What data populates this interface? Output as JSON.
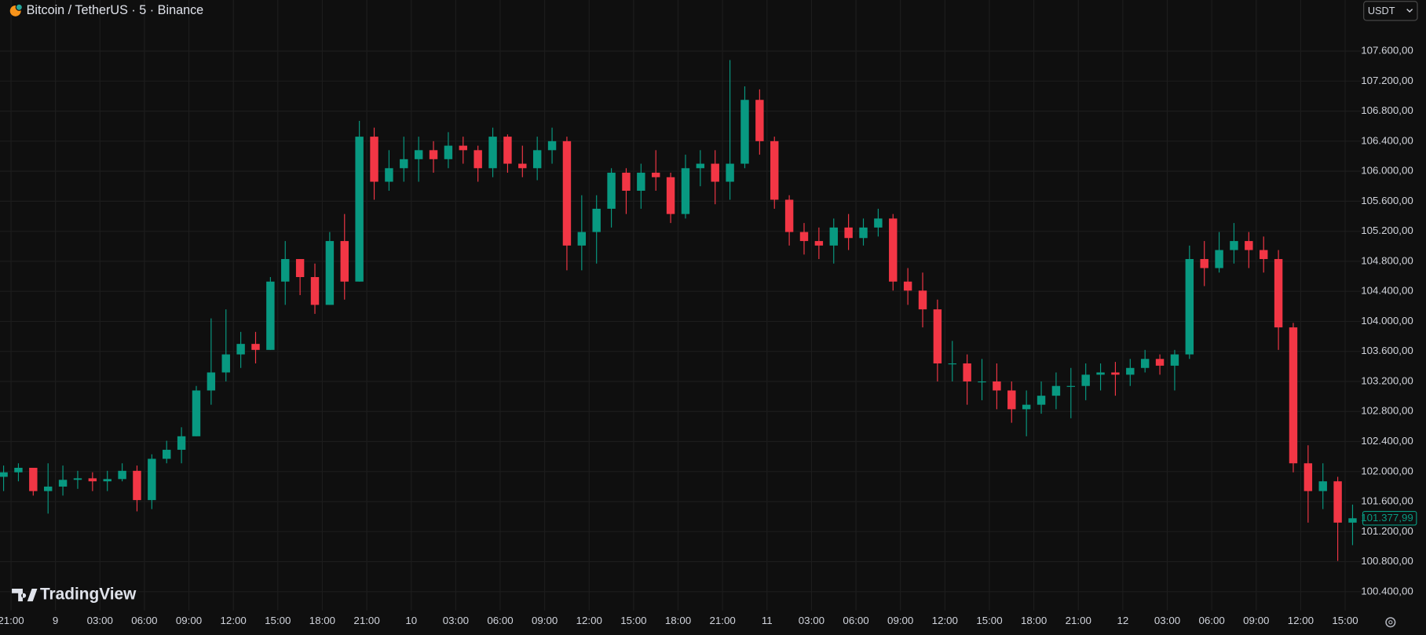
{
  "chart_data": {
    "type": "candlestick",
    "title": "Bitcoin / TetherUS · 5 · Binance",
    "currency": "USDT",
    "brand": "TradingView",
    "up_color": "#089981",
    "down_color": "#f23645",
    "grid": true,
    "categories": [
      null,
      "21:00",
      null,
      null,
      "9",
      null,
      null,
      "03:00",
      null,
      null,
      "06:00",
      null,
      null,
      "09:00",
      null,
      null,
      "12:00",
      null,
      null,
      "15:00",
      null,
      null,
      "18:00",
      null,
      null,
      "21:00",
      null,
      null,
      "10",
      null,
      null,
      "03:00",
      null,
      null,
      "06:00",
      null,
      null,
      "09:00",
      null,
      null,
      "12:00",
      null,
      null,
      "15:00",
      null,
      null,
      "18:00",
      null,
      null,
      "21:00",
      null,
      null,
      "11",
      null,
      null,
      "03:00",
      null,
      null,
      "06:00",
      null,
      null,
      "09:00",
      null,
      null,
      "12:00",
      null,
      null,
      "15:00",
      null,
      null,
      "18:00",
      null,
      null,
      "21:00",
      null,
      null,
      "12",
      null,
      null,
      "03:00",
      null,
      null,
      "06:00",
      null,
      null,
      "09:00",
      null,
      null,
      "12:00",
      null,
      null,
      "15:00"
    ],
    "open": [
      101930,
      101990,
      102050,
      101740,
      101800,
      101890,
      101910,
      101870,
      101900,
      102010,
      101620,
      102170,
      102290,
      102470,
      103080,
      103320,
      103560,
      103700,
      103620,
      104530,
      104830,
      104590,
      104220,
      105070,
      104530,
      106460,
      105860,
      106040,
      106160,
      106280,
      106160,
      106340,
      106280,
      106040,
      106460,
      106100,
      106040,
      106280,
      106400,
      105010,
      105190,
      105500,
      105980,
      105740,
      105980,
      105920,
      105430,
      106040,
      106100,
      105860,
      106100,
      106950,
      106400,
      105620,
      105190,
      105070,
      105010,
      105250,
      105110,
      105250,
      105370,
      104530,
      104410,
      104160,
      103440,
      103440,
      103200,
      103200,
      103080,
      102830,
      102890,
      103010,
      103140,
      103140,
      103290,
      103320,
      103290,
      103380,
      103500,
      103410,
      103560,
      104830,
      104710,
      104950,
      105070,
      104950,
      104830,
      103920,
      102110,
      101740,
      101870,
      101320
    ],
    "high": [
      102080,
      102110,
      102050,
      102110,
      102080,
      102010,
      101990,
      102010,
      102110,
      102080,
      102230,
      102410,
      102590,
      103140,
      104040,
      104160,
      103860,
      103860,
      104590,
      105070,
      104830,
      104770,
      105190,
      105430,
      106670,
      106580,
      106280,
      106460,
      106460,
      106400,
      106520,
      106460,
      106340,
      106580,
      106490,
      106340,
      106460,
      106580,
      106460,
      105680,
      105680,
      106040,
      106040,
      106100,
      106280,
      105980,
      106220,
      106280,
      106280,
      107480,
      107130,
      107090,
      106460,
      105680,
      105310,
      105250,
      105370,
      105430,
      105370,
      105500,
      105430,
      104710,
      104650,
      104290,
      103740,
      103560,
      103500,
      103440,
      103200,
      103080,
      103200,
      103320,
      103380,
      103440,
      103440,
      103460,
      103500,
      103620,
      103560,
      103620,
      105010,
      105070,
      105190,
      105310,
      105190,
      105130,
      104950,
      103980,
      102350,
      102110,
      101930,
      101560
    ],
    "low": [
      101740,
      101870,
      101680,
      101440,
      101680,
      101770,
      101740,
      101740,
      101870,
      101470,
      101500,
      102110,
      102110,
      102470,
      102890,
      103200,
      103380,
      103440,
      103620,
      104220,
      104350,
      104100,
      104220,
      104290,
      104530,
      105620,
      105740,
      105860,
      105860,
      105980,
      106040,
      106100,
      105860,
      105920,
      105980,
      105920,
      105880,
      106100,
      104680,
      104680,
      104770,
      105250,
      105430,
      105500,
      105740,
      105310,
      105370,
      105800,
      105560,
      105620,
      106040,
      106220,
      105500,
      105010,
      104890,
      104830,
      104770,
      104950,
      105010,
      105130,
      104410,
      104220,
      103920,
      103200,
      103200,
      102890,
      102950,
      102830,
      102650,
      102470,
      102770,
      102830,
      102710,
      102950,
      103080,
      103010,
      103140,
      103320,
      103290,
      103080,
      103500,
      104470,
      104650,
      104770,
      104710,
      104650,
      103620,
      101990,
      101320,
      101500,
      100810,
      101020
    ],
    "close": [
      101990,
      102050,
      101740,
      101800,
      101890,
      101910,
      101870,
      101900,
      102010,
      101620,
      102170,
      102290,
      102470,
      103080,
      103320,
      103560,
      103700,
      103620,
      104530,
      104830,
      104590,
      104220,
      105070,
      104530,
      106460,
      105860,
      106040,
      106160,
      106280,
      106160,
      106340,
      106280,
      106040,
      106460,
      106100,
      106040,
      106280,
      106400,
      105010,
      105190,
      105500,
      105980,
      105740,
      105980,
      105920,
      105430,
      106040,
      106100,
      105860,
      106100,
      106950,
      106400,
      105620,
      105190,
      105070,
      105010,
      105250,
      105110,
      105250,
      105370,
      104530,
      104410,
      104160,
      103440,
      103440,
      103200,
      103200,
      103080,
      102830,
      102890,
      103010,
      103140,
      103140,
      103290,
      103320,
      103290,
      103380,
      103500,
      103410,
      103560,
      104830,
      104710,
      104950,
      105070,
      104950,
      104830,
      103920,
      102110,
      101740,
      101870,
      101320,
      101377.99
    ],
    "last_price": {
      "value": 101377.99,
      "label": "101.377,99"
    },
    "ylim": [
      100150,
      108280
    ],
    "yticks": [
      {
        "value": 100400,
        "label": "100.400,00"
      },
      {
        "value": 100800,
        "label": "100.800,00"
      },
      {
        "value": 101200,
        "label": "101.200,00"
      },
      {
        "value": 101600,
        "label": "101.600,00"
      },
      {
        "value": 102000,
        "label": "102.000,00"
      },
      {
        "value": 102400,
        "label": "102.400,00"
      },
      {
        "value": 102800,
        "label": "102.800,00"
      },
      {
        "value": 103200,
        "label": "103.200,00"
      },
      {
        "value": 103600,
        "label": "103.600,00"
      },
      {
        "value": 104000,
        "label": "104.000,00"
      },
      {
        "value": 104400,
        "label": "104.400,00"
      },
      {
        "value": 104800,
        "label": "104.800,00"
      },
      {
        "value": 105200,
        "label": "105.200,00"
      },
      {
        "value": 105600,
        "label": "105.600,00"
      },
      {
        "value": 106000,
        "label": "106.000,00"
      },
      {
        "value": 106400,
        "label": "106.400,00"
      },
      {
        "value": 106800,
        "label": "106.800,00"
      },
      {
        "value": 107200,
        "label": "107.200,00"
      },
      {
        "value": 107600,
        "label": "107.600,00"
      }
    ]
  }
}
